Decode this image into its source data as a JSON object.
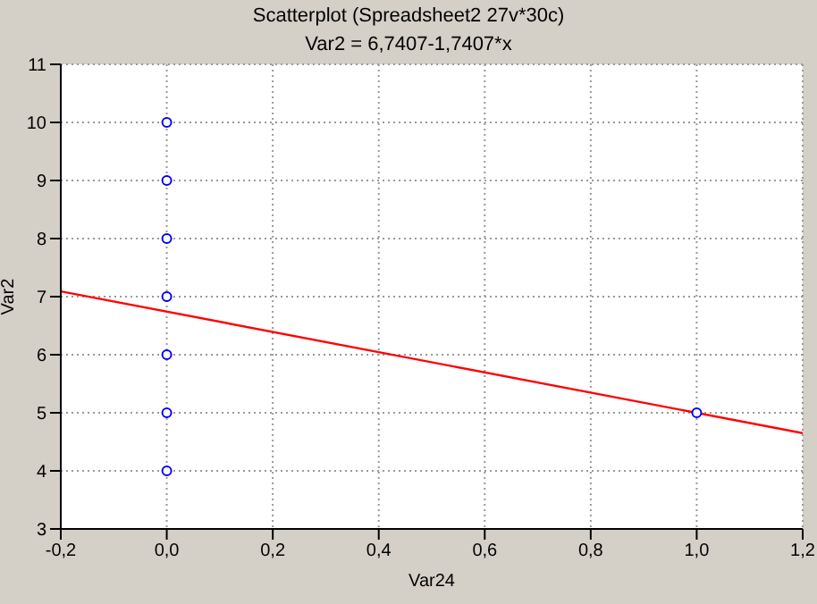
{
  "chart_data": {
    "type": "scatter",
    "title": "Scatterplot (Spreadsheet2 27v*30c)",
    "subtitle": "Var2 = 6,7407-1,7407*x",
    "xlabel": "Var24",
    "ylabel": "Var2",
    "series": [
      {
        "type": "scatter",
        "color": "#0000ff",
        "marker": "circle",
        "x": [
          0,
          0,
          0,
          0,
          0,
          0,
          0,
          1
        ],
        "values": [
          4,
          5,
          6,
          7,
          8,
          9,
          10,
          5
        ]
      },
      {
        "type": "line",
        "color": "#ff0000",
        "marker": "none",
        "x": [
          -0.2,
          1.2
        ],
        "values": [
          7.09,
          4.65
        ]
      }
    ],
    "xlim": [
      -0.2,
      1.2
    ],
    "xticks": [
      {
        "value": -0.2,
        "label": "-0,2"
      },
      {
        "value": 0,
        "label": "0,0"
      },
      {
        "value": 0.2,
        "label": "0,2"
      },
      {
        "value": 0.4,
        "label": "0,4"
      },
      {
        "value": 0.6,
        "label": "0,6"
      },
      {
        "value": 0.8,
        "label": "0,8"
      },
      {
        "value": 1,
        "label": "1,0"
      },
      {
        "value": 1.2,
        "label": "1,2"
      }
    ],
    "ylim": [
      3,
      11
    ],
    "yticks": [
      3,
      4,
      5,
      6,
      7,
      8,
      9,
      10,
      11
    ],
    "grid": true
  }
}
